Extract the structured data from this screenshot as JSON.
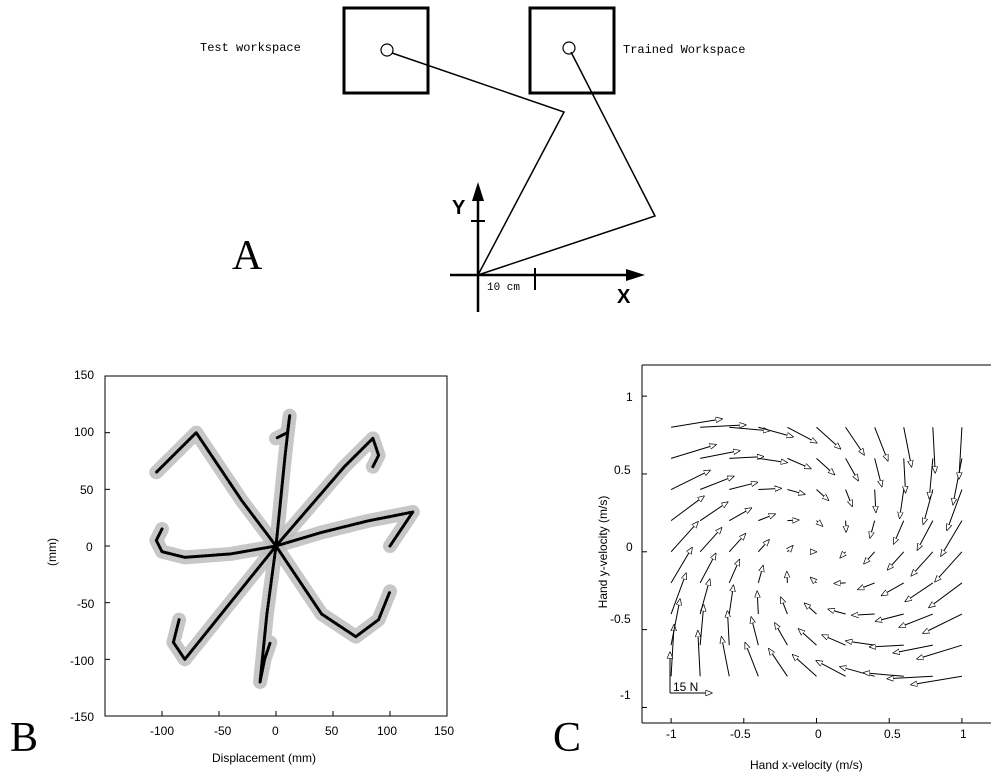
{
  "panel_a": {
    "letter": "A",
    "test_label": "Test workspace",
    "trained_label": "Trained Workspace",
    "axis_x": "X",
    "axis_y": "Y",
    "scale_label": "10 cm"
  },
  "panel_b": {
    "letter": "B",
    "xlabel": "Displacement (mm)",
    "ylabel": "(mm)",
    "xticks": [
      "-100",
      "-50",
      "0",
      "50",
      "100",
      "150"
    ],
    "yticks": [
      "150",
      "100",
      "50",
      "0",
      "-50",
      "-100",
      "-150"
    ]
  },
  "panel_c": {
    "letter": "C",
    "xlabel": "Hand x-velocity (m/s)",
    "ylabel": "Hand y-velocity (m/s)",
    "xticks": [
      "-1",
      "-0.5",
      "0",
      "0.5",
      "1"
    ],
    "yticks": [
      "1",
      "0.5",
      "0",
      "-0.5",
      "-1"
    ],
    "scale_label": "15 N"
  },
  "chart_data": [
    {
      "type": "line",
      "panel": "B",
      "xlabel": "Displacement (mm)",
      "ylabel": "(mm)",
      "xlim": [
        -150,
        150
      ],
      "ylim": [
        -150,
        150
      ],
      "series": [
        {
          "x": [
            0,
            -30,
            -60,
            -70,
            -85,
            -105
          ],
          "y": [
            0,
            40,
            85,
            100,
            85,
            65
          ]
        },
        {
          "x": [
            0,
            4,
            8,
            12,
            10,
            0
          ],
          "y": [
            0,
            40,
            80,
            115,
            100,
            95
          ]
        },
        {
          "x": [
            0,
            30,
            60,
            85,
            90,
            85
          ],
          "y": [
            0,
            35,
            70,
            95,
            80,
            70
          ]
        },
        {
          "x": [
            0,
            40,
            80,
            120,
            110,
            100
          ],
          "y": [
            0,
            12,
            22,
            30,
            15,
            0
          ]
        },
        {
          "x": [
            0,
            -40,
            -80,
            -100,
            -105,
            -100
          ],
          "y": [
            0,
            -7,
            -10,
            -5,
            5,
            15
          ]
        },
        {
          "x": [
            0,
            40,
            70,
            90,
            100
          ],
          "y": [
            0,
            -60,
            -80,
            -65,
            -40
          ]
        },
        {
          "x": [
            0,
            -40,
            -80,
            -90,
            -85
          ],
          "y": [
            0,
            -50,
            -100,
            -85,
            -65
          ]
        },
        {
          "x": [
            0,
            -8,
            -14,
            -10,
            -5
          ],
          "y": [
            0,
            -60,
            -120,
            -100,
            -85
          ]
        }
      ]
    },
    {
      "type": "scatter",
      "panel": "C",
      "xlabel": "Hand x-velocity (m/s)",
      "ylabel": "Hand y-velocity (m/s)",
      "xlim": [
        -1.2,
        1.2
      ],
      "ylim": [
        -1.1,
        1.2
      ],
      "note": "force vector field"
    }
  ]
}
